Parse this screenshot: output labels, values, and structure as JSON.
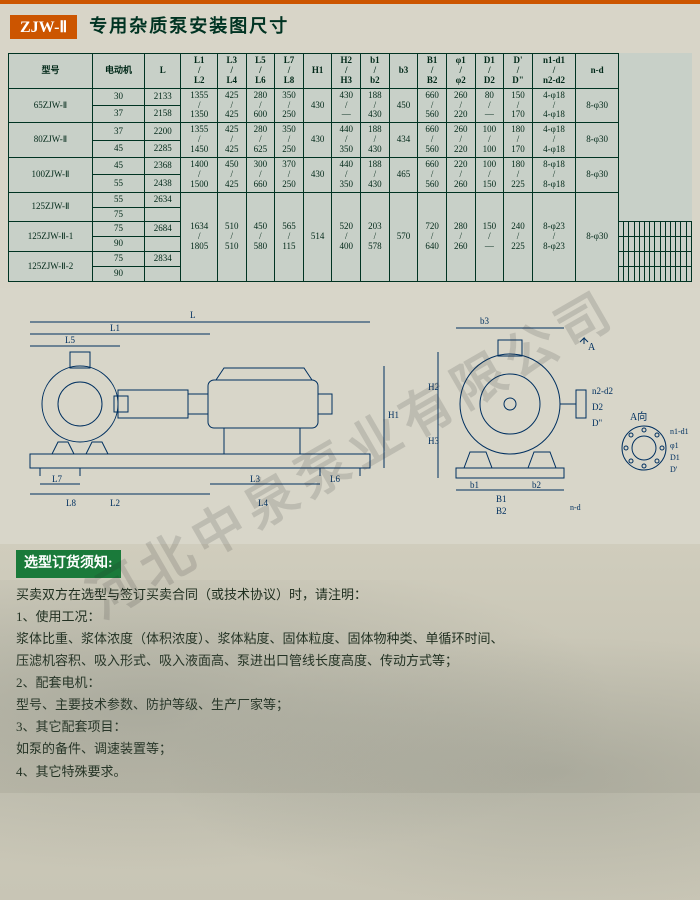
{
  "header": {
    "badge": "ZJW-Ⅱ",
    "title": "专用杂质泵安装图尺寸"
  },
  "table": {
    "columns": [
      "型号",
      "电动机",
      "L",
      "L1 / L2",
      "L3 / L4",
      "L5 / L6",
      "L7 / L8",
      "H1",
      "H2 / H3",
      "b1 / b2",
      "b3",
      "B1 / B2",
      "φ1 / φ2",
      "D1 / D2",
      "D' / D\"",
      "n1-d1 / n2-d2",
      "n-d"
    ],
    "rows": [
      [
        "65ZJW-Ⅱ",
        "30",
        "2133",
        "1355 / 1350",
        "425 / 425",
        "280 / 600",
        "350 / 250",
        "430",
        "430 / —",
        "188 / 430",
        "450",
        "660 / 560",
        "260 / 220",
        "80 / —",
        "150 / 170",
        "4-φ18 / 4-φ18",
        "8-φ30"
      ],
      [
        "",
        "37",
        "2158",
        "",
        "",
        "",
        "",
        "",
        "",
        "",
        "",
        "",
        "",
        "",
        "",
        "",
        ""
      ],
      [
        "80ZJW-Ⅱ",
        "37",
        "2200",
        "1355 / 1450",
        "425 / 425",
        "280 / 625",
        "350 / 250",
        "430",
        "440 / 350",
        "188 / 430",
        "434",
        "660 / 560",
        "260 / 220",
        "100 / 100",
        "180 / 170",
        "4-φ18 / 4-φ18",
        "8-φ30"
      ],
      [
        "",
        "45",
        "2285",
        "",
        "",
        "",
        "",
        "",
        "",
        "",
        "",
        "",
        "",
        "",
        "",
        "",
        ""
      ],
      [
        "100ZJW-Ⅱ",
        "45",
        "2368",
        "1400 / 1500",
        "450 / 425",
        "300 / 660",
        "370 / 250",
        "430",
        "440 / 350",
        "188 / 430",
        "465",
        "660 / 560",
        "220 / 260",
        "100 / 150",
        "180 / 225",
        "8-φ18 / 8-φ18",
        "8-φ30"
      ],
      [
        "",
        "55",
        "2438",
        "",
        "",
        "",
        "",
        "",
        "",
        "",
        "",
        "",
        "",
        "",
        "",
        "",
        ""
      ],
      [
        "125ZJW-Ⅱ",
        "55",
        "2634",
        "1634 / 1805",
        "510 / 510",
        "450 / 580",
        "565 / 115",
        "514",
        "520 / 400",
        "203 / 578",
        "570",
        "720 / 640",
        "280 / 260",
        "150 / —",
        "240 / 225",
        "8-φ23 / 8-φ23",
        "8-φ30"
      ],
      [
        "",
        "75",
        "",
        "",
        "",
        "",
        "",
        "",
        "",
        "",
        "",
        "",
        "",
        "",
        "",
        "",
        ""
      ],
      [
        "125ZJW-Ⅱ-1",
        "75",
        "2684",
        "",
        "",
        "",
        "",
        "",
        "",
        "",
        "",
        "",
        "",
        "",
        "",
        "",
        ""
      ],
      [
        "",
        "90",
        "",
        "",
        "",
        "",
        "",
        "",
        "",
        "",
        "",
        "",
        "",
        "",
        "",
        "",
        ""
      ],
      [
        "125ZJW-Ⅱ-2",
        "75",
        "2834",
        "",
        "",
        "",
        "",
        "",
        "",
        "",
        "",
        "",
        "",
        "",
        "",
        "",
        ""
      ],
      [
        "",
        "90",
        "",
        "",
        "",
        "",
        "",
        "",
        "",
        "",
        "",
        "",
        "",
        "",
        "",
        "",
        ""
      ]
    ],
    "colors": {
      "border": "#003322",
      "bg": "#c8d0c8",
      "text": "#002818"
    }
  },
  "diagram": {
    "label_L": "L",
    "label_L1": "L1",
    "label_L5": "L5",
    "label_L7": "L7",
    "label_L8": "L8",
    "label_L2": "L2",
    "label_L3": "L3",
    "label_L4": "L4",
    "label_L6": "L6",
    "label_H1": "H1",
    "label_H2": "H2",
    "label_H3": "H3",
    "label_A": "A",
    "label_AR": "A向",
    "label_b1": "b1",
    "label_b2": "b2",
    "label_b3": "b3",
    "label_B1": "B1",
    "label_B2": "B2",
    "label_phi1": "φ1",
    "label_phi2": "φ2",
    "label_D1": "D1",
    "label_D2": "D2",
    "label_Dp": "D'",
    "label_Dpp": "D\"",
    "label_n1d1": "n1-d1",
    "label_n2d2": "n2-d2",
    "label_nd": "n-d",
    "stroke": "#003060"
  },
  "notes": {
    "header": "选型订货须知:",
    "intro": "买卖双方在选型与签订买卖合同（或技术协议）时，请注明：",
    "s1": "1、使用工况：",
    "s1a": "浆体比重、浆体浓度（体积浓度）、浆体粘度、固体粒度、固体物种类、单循环时间、",
    "s1b": "压滤机容积、吸入形式、吸入液面高、泵进出口管线长度高度、传动方式等；",
    "s2": "2、配套电机：",
    "s2a": "型号、主要技术参数、防护等级、生产厂家等；",
    "s3": "3、其它配套项目：",
    "s3a": "如泵的备件、调速装置等；",
    "s4": "4、其它特殊要求。"
  },
  "watermark": "河北中泉泵业有限公司"
}
